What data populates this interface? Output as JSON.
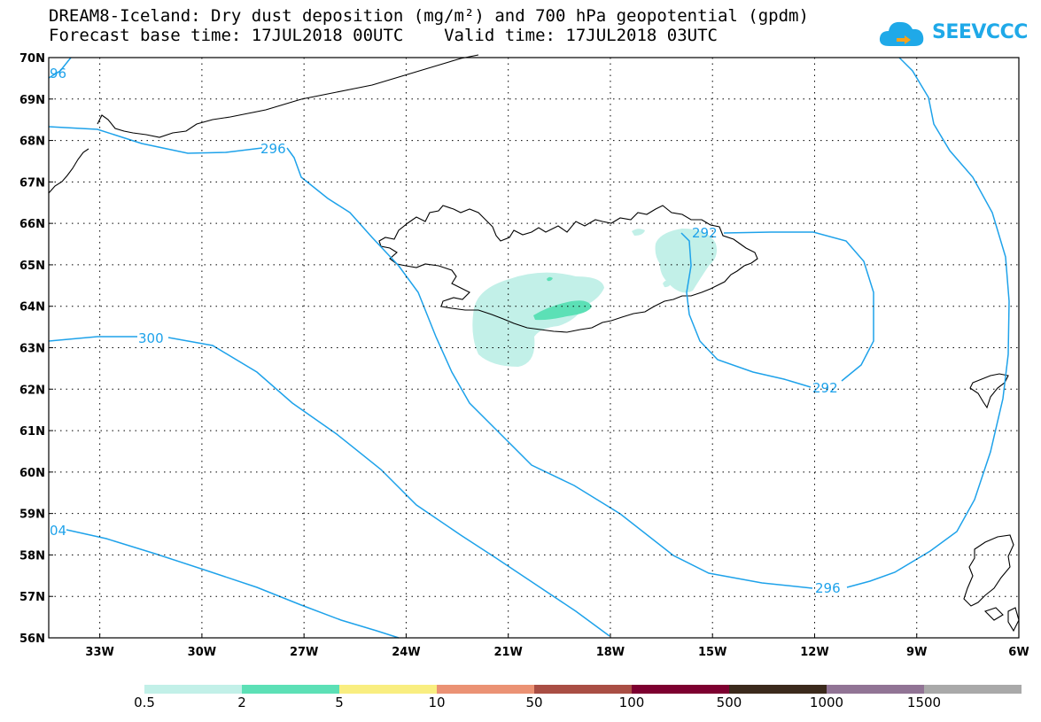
{
  "title": {
    "line1": "DREAM8-Iceland: Dry dust deposition (mg/m²) and 700 hPa geopotential (gpdm)",
    "line2": "Forecast base time: 17JUL2018 00UTC    Valid time: 17JUL2018 03UTC"
  },
  "logo": {
    "text": "SEEVCCC",
    "color": "#1fa9e8"
  },
  "map": {
    "lat_labels": [
      "70N",
      "69N",
      "68N",
      "67N",
      "66N",
      "65N",
      "64N",
      "63N",
      "62N",
      "61N",
      "60N",
      "59N",
      "58N",
      "57N",
      "56N"
    ],
    "lon_labels": [
      "33W",
      "30W",
      "27W",
      "24W",
      "21W",
      "18W",
      "15W",
      "12W",
      "9W",
      "6W"
    ],
    "contour_color": "#1ea2ea",
    "contour_labels": [
      "96",
      "296",
      "292",
      "292",
      "300",
      "296",
      "04"
    ]
  },
  "legend": {
    "colors": [
      "#c2f0e8",
      "#5ce0b6",
      "#f9ee80",
      "#eb9274",
      "#a94e44",
      "#7d0030",
      "#3b2a1c",
      "#917495",
      "#a9a9a9"
    ],
    "labels": [
      "0.5",
      "2",
      "5",
      "10",
      "50",
      "100",
      "500",
      "1000",
      "1500"
    ]
  }
}
